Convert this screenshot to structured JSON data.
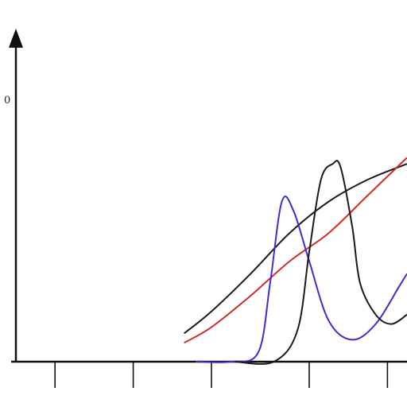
{
  "chart_data": {
    "type": "line",
    "title": "",
    "xlabel": "",
    "ylabel": "",
    "xlim": [
      0,
      10
    ],
    "ylim": [
      0,
      10
    ],
    "grid": false,
    "legend": "none",
    "x_tick_values": [
      1,
      3,
      5,
      7.5,
      9.5
    ],
    "x_tick_labels": [
      "",
      "",
      "",
      "",
      ""
    ],
    "y_tick_labels": [
      "0",
      "",
      ""
    ],
    "annotations": [],
    "colors": {
      "axis": "#111111",
      "red": "#d42a2a",
      "blue": "#3a2fd0",
      "black": "#1a1a1a"
    },
    "series": [
      {
        "color": "#1a1a1a",
        "x": [
          4.3,
          5.0,
          6.0,
          7.0,
          8.0,
          9.0,
          10.0
        ],
        "y": [
          0.9,
          1.6,
          2.8,
          4.1,
          5.1,
          5.8,
          6.3
        ]
      },
      {
        "color": "#d42a2a",
        "x": [
          4.3,
          5.0,
          6.0,
          7.0,
          8.0,
          9.0,
          10.0
        ],
        "y": [
          0.6,
          1.1,
          2.1,
          3.2,
          4.1,
          5.3,
          6.5
        ]
      },
      {
        "color": "#3a2fd0",
        "x": [
          4.6,
          5.5,
          6.2,
          6.5,
          6.8,
          7.1,
          7.5,
          8.0,
          8.6,
          9.2,
          9.8,
          10.0
        ],
        "y": [
          0.0,
          0.0,
          0.3,
          2.5,
          5.1,
          4.8,
          3.2,
          1.3,
          0.7,
          1.2,
          2.4,
          2.8
        ]
      },
      {
        "color": "#1a1a1a",
        "x": [
          5.6,
          6.6,
          7.2,
          7.5,
          7.8,
          8.1,
          8.3,
          8.6,
          8.8,
          9.2,
          9.6,
          10.0
        ],
        "y": [
          0.0,
          0.0,
          1.0,
          3.5,
          5.8,
          6.3,
          6.2,
          4.3,
          2.5,
          1.5,
          1.2,
          1.5
        ]
      }
    ]
  }
}
